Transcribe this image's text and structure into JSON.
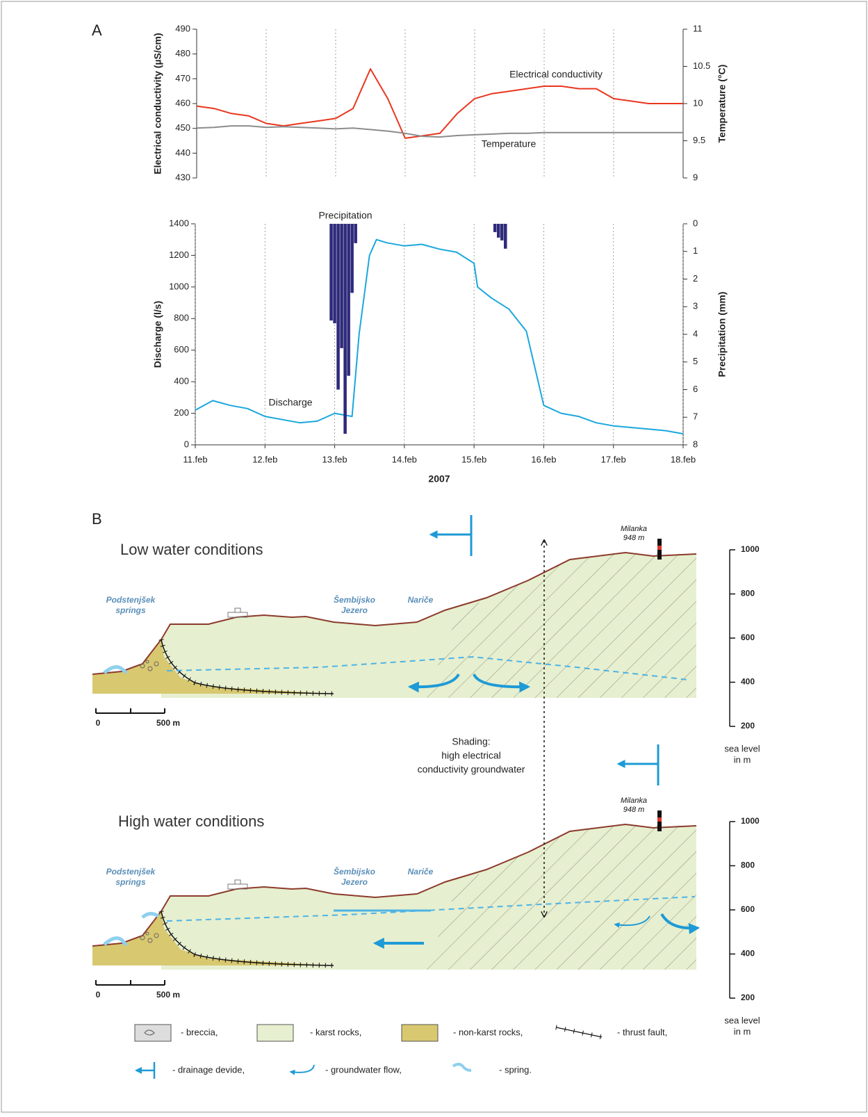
{
  "panels": [
    "A",
    "B"
  ],
  "chart_data": [
    {
      "type": "line",
      "ylabel": "Electrical conductivity (µS/cm)",
      "y2label": "Temperature (°C)",
      "x": [
        11,
        11.25,
        11.5,
        11.75,
        12,
        12.25,
        12.5,
        12.75,
        13,
        13.25,
        13.5,
        13.75,
        14,
        14.25,
        14.5,
        14.75,
        15,
        15.25,
        15.5,
        15.75,
        16,
        16.25,
        16.5,
        16.75,
        17,
        17.25,
        17.5,
        17.75,
        18
      ],
      "xlim": [
        11,
        18
      ],
      "xticks": [
        12,
        13,
        14,
        15,
        16,
        17
      ],
      "show_xtick_labels": false,
      "grid_x": true,
      "ylim": [
        430,
        490
      ],
      "yticks": [
        430,
        440,
        450,
        460,
        470,
        480,
        490
      ],
      "y2lim": [
        9,
        11
      ],
      "y2ticks": [
        9,
        9.5,
        10,
        10.5,
        11
      ],
      "y2_inverted": false,
      "series": [
        {
          "name": "Electrical conductivity",
          "color": "#e8361f",
          "type": "line",
          "axis": "y",
          "values": [
            459,
            458,
            456,
            455,
            452,
            451,
            452,
            453,
            454,
            458,
            474,
            462,
            446,
            447,
            448,
            456,
            462,
            464,
            465,
            466,
            467,
            467,
            466,
            466,
            462,
            461,
            460,
            460,
            460
          ]
        },
        {
          "name": "Temperature",
          "color": "#8c8c8c",
          "type": "line",
          "axis": "y2",
          "values": [
            9.67,
            9.68,
            9.7,
            9.7,
            9.68,
            9.69,
            9.68,
            9.67,
            9.66,
            9.67,
            9.65,
            9.63,
            9.6,
            9.56,
            9.55,
            9.57,
            9.58,
            9.59,
            9.6,
            9.6,
            9.61,
            9.61,
            9.61,
            9.61,
            9.61,
            9.61,
            9.61,
            9.61,
            9.61
          ]
        }
      ]
    },
    {
      "type": "line",
      "xlabel": "2007",
      "ylabel": "Discharge (l/s)",
      "y2label": "Precipitation (mm)",
      "xlim": [
        11,
        18
      ],
      "xticks": [
        {
          "value": 11,
          "label": "11.feb"
        },
        {
          "value": 12,
          "label": "12.feb"
        },
        {
          "value": 13,
          "label": "13.feb"
        },
        {
          "value": 14,
          "label": "14.feb"
        },
        {
          "value": 15,
          "label": "15.feb"
        },
        {
          "value": 16,
          "label": "16.feb"
        },
        {
          "value": 17,
          "label": "17.feb"
        },
        {
          "value": 18,
          "label": "18.feb"
        }
      ],
      "show_xtick_labels": true,
      "grid_x": true,
      "ylim": [
        0,
        1400
      ],
      "yticks": [
        0,
        200,
        400,
        600,
        800,
        1000,
        1200,
        1400
      ],
      "y2lim": [
        0,
        8
      ],
      "y2ticks": [
        0,
        1,
        2,
        3,
        4,
        5,
        6,
        7,
        8
      ],
      "y2_inverted": true,
      "series": [
        {
          "name": "Discharge",
          "color": "#1aa7dd",
          "type": "line",
          "axis": "y",
          "x": [
            11,
            11.25,
            11.5,
            11.75,
            12,
            12.25,
            12.5,
            12.75,
            13,
            13.25,
            13.35,
            13.5,
            13.6,
            13.75,
            14,
            14.25,
            14.5,
            14.75,
            15,
            15.05,
            15.25,
            15.5,
            15.75,
            16,
            16.25,
            16.5,
            16.75,
            17,
            17.25,
            17.5,
            17.75,
            18
          ],
          "values": [
            220,
            280,
            250,
            230,
            180,
            160,
            140,
            150,
            200,
            180,
            700,
            1200,
            1300,
            1280,
            1260,
            1270,
            1240,
            1220,
            1150,
            1000,
            930,
            860,
            720,
            250,
            200,
            180,
            140,
            120,
            110,
            100,
            90,
            70
          ]
        },
        {
          "name": "Precipitation",
          "color": "#2e2a7a",
          "type": "bar",
          "axis": "y2",
          "x": [
            12.95,
            13.0,
            13.05,
            13.1,
            13.15,
            13.2,
            13.25,
            13.3,
            15.3,
            15.35,
            15.4,
            15.45
          ],
          "values": [
            3.5,
            3.6,
            6.0,
            4.5,
            7.6,
            5.5,
            2.5,
            0.7,
            0.3,
            0.5,
            0.6,
            0.9
          ]
        }
      ]
    }
  ],
  "diagram": {
    "sections": [
      {
        "title": "Low water conditions",
        "spring_label": [
          "Podstenjšek",
          "springs"
        ],
        "lake_label": [
          "Šembijsko",
          "Jezero"
        ],
        "village_label": "Nariče",
        "peak_label": [
          "Milanka",
          "948 m"
        ],
        "scale": [
          "0",
          "500 m"
        ],
        "elevation_ticks": [
          "1000",
          "800",
          "600",
          "400",
          "200"
        ],
        "elevation_unit": [
          "sea level",
          "in m"
        ]
      },
      {
        "title": "High water conditions",
        "spring_label": [
          "Podstenjšek",
          "springs"
        ],
        "lake_label": [
          "Šembijsko",
          "Jezero"
        ],
        "village_label": "Nariče",
        "peak_label": [
          "Milanka",
          "948 m"
        ],
        "scale": [
          "0",
          "500 m"
        ],
        "elevation_ticks": [
          "1000",
          "800",
          "600",
          "400",
          "200"
        ],
        "elevation_unit": [
          "sea level",
          "in m"
        ]
      }
    ],
    "shading_note": [
      "Shading:",
      "high electrical",
      "conductivity groundwater"
    ],
    "legend": [
      "- breccia,",
      "- karst rocks,",
      "- non-karst rocks,",
      "- thrust fault,",
      "- drainage devide,",
      "- groundwater flow,",
      "- spring."
    ]
  }
}
